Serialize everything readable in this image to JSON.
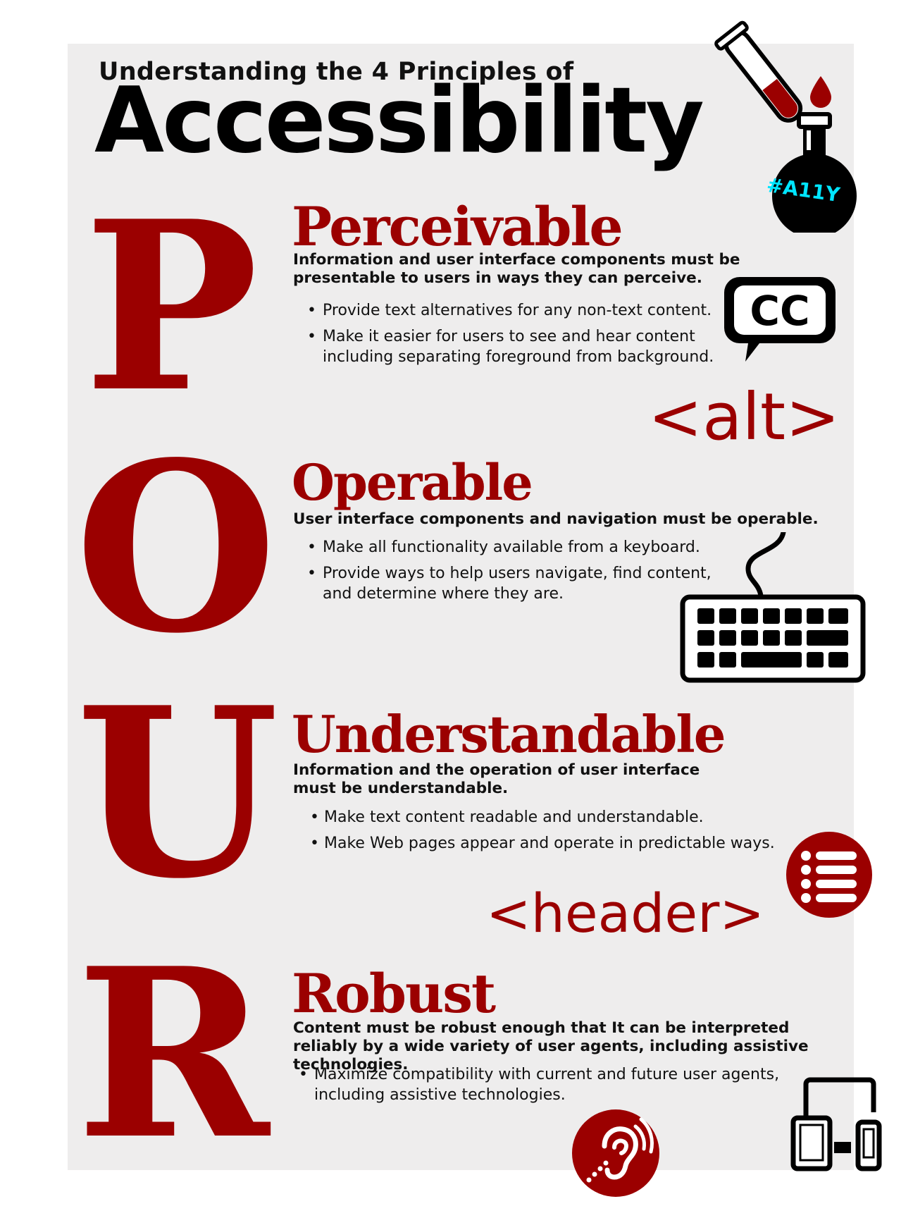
{
  "header": {
    "subtitle": "Understanding the 4 Principles of",
    "title": "Accessibility",
    "hashtag": "#A11Y"
  },
  "colors": {
    "accent": "#9b0000",
    "hashtag": "#00e5ff",
    "panel": "#eeeded"
  },
  "principles": [
    {
      "letter": "P",
      "heading": "Perceivable",
      "description": "Information and user interface components must be presentable to users in ways they can perceive.",
      "bullets": [
        "Provide text alternatives for any non-text content.",
        "Make it easier for users to see and hear content including separating foreground from background."
      ],
      "icon": "closed-caption-icon",
      "code_tag": "<alt>"
    },
    {
      "letter": "O",
      "heading": "Operable",
      "description": "User interface components and navigation must be operable.",
      "bullets": [
        "Make all functionality available from a keyboard.",
        "Provide ways to help users navigate, find content, and determine where they are."
      ],
      "icon": "keyboard-icon"
    },
    {
      "letter": "U",
      "heading": "Understandable",
      "description": "Information and the operation of user interface must be understandable.",
      "bullets": [
        "Make text content readable and understandable.",
        "Make Web pages appear and operate in predictable ways."
      ],
      "icon": "list-icon",
      "code_tag": "<header>"
    },
    {
      "letter": "R",
      "heading": "Robust",
      "description": "Content must be robust enough that It can be interpreted reliably by a wide variety of user agents, including assistive technologies.",
      "bullets": [
        "Maximize compatibility with current and future user agents, including assistive technologies."
      ],
      "icons": [
        "hearing-assistance-icon",
        "devices-icon"
      ]
    }
  ]
}
